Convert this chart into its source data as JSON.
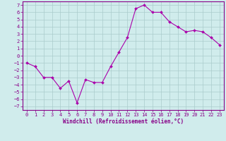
{
  "x": [
    0,
    1,
    2,
    3,
    4,
    5,
    6,
    7,
    8,
    9,
    10,
    11,
    12,
    13,
    14,
    15,
    16,
    17,
    18,
    19,
    20,
    21,
    22,
    23
  ],
  "y": [
    -1.0,
    -1.5,
    -3.0,
    -3.0,
    -4.5,
    -3.5,
    -6.5,
    -3.3,
    -3.7,
    -3.7,
    -1.5,
    0.5,
    2.5,
    6.5,
    7.0,
    6.0,
    6.0,
    4.7,
    4.0,
    3.3,
    3.5,
    3.3,
    2.5,
    1.5
  ],
  "line_color": "#aa00aa",
  "marker": "D",
  "marker_size": 2,
  "bg_color": "#d0ecec",
  "grid_color": "#aacccc",
  "xlabel": "Windchill (Refroidissement éolien,°C)",
  "ylim": [
    -7.5,
    7.5
  ],
  "xlim": [
    -0.5,
    23.5
  ],
  "yticks": [
    -7,
    -6,
    -5,
    -4,
    -3,
    -2,
    -1,
    0,
    1,
    2,
    3,
    4,
    5,
    6,
    7
  ],
  "xticks": [
    0,
    1,
    2,
    3,
    4,
    5,
    6,
    7,
    8,
    9,
    10,
    11,
    12,
    13,
    14,
    15,
    16,
    17,
    18,
    19,
    20,
    21,
    22,
    23
  ],
  "tick_color": "#880088",
  "axis_color": "#880088",
  "label_fontsize": 5.5,
  "tick_fontsize": 5.0
}
